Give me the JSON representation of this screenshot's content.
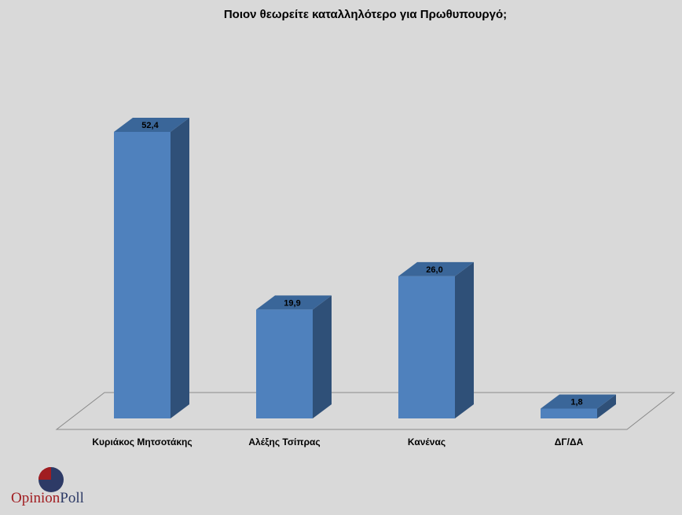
{
  "chart_data": {
    "type": "bar3d",
    "title": "Ποιον θεωρείτε καταλληλότερο για Πρωθυπουργό;",
    "categories": [
      "Κυριάκος Μητσοτάκης",
      "Αλέξης Τσίπρας",
      "Κανένας",
      "ΔΓ/ΔΑ"
    ],
    "values": [
      52.4,
      19.9,
      26.0,
      1.8
    ],
    "value_labels": [
      "52,4",
      "19,9",
      "26,0",
      "1,8"
    ],
    "color": "#4f81bd",
    "ylim": [
      0,
      60
    ]
  },
  "brand": [
    "Opinion",
    "Poll"
  ]
}
